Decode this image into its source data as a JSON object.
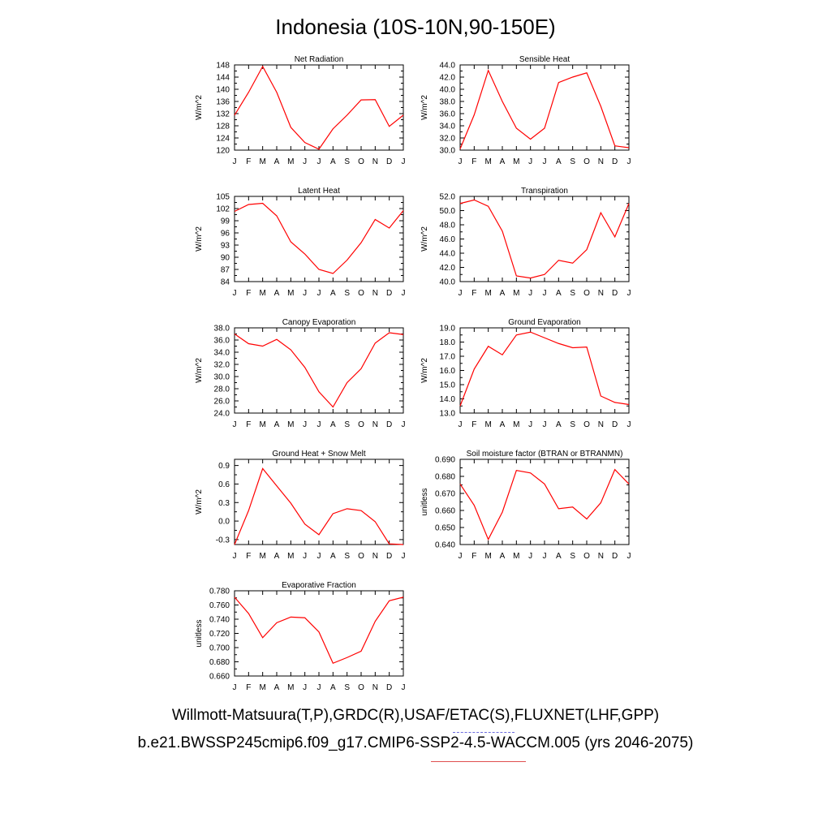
{
  "title": "Indonesia (10S-10N,90-150E)",
  "footer": {
    "observations": "Willmott-Matsuura(T,P),GRDC(R),USAF/ETAC(S),FLUXNET(LHF,GPP)",
    "case": "b.e21.BWSSP245cmip6.f09_g17.CMIP6-SSP2-4.5-WACCM.005 (yrs 2046-2075)"
  },
  "colors": {
    "series": "#ff0000",
    "obs_line": "#6b6bdd",
    "case_line": "#e05050"
  },
  "chart_data": [
    {
      "type": "line",
      "title": "Net Radiation",
      "ylabel": "W/m^2",
      "categories": [
        "J",
        "F",
        "M",
        "A",
        "M",
        "J",
        "J",
        "A",
        "S",
        "O",
        "N",
        "D",
        "J"
      ],
      "values": [
        131.5,
        139.0,
        147.5,
        139.0,
        127.5,
        122.5,
        120.3,
        127.0,
        131.5,
        136.5,
        136.6,
        127.8,
        131.5
      ],
      "ylim": [
        120,
        148
      ],
      "yticks": [
        "120",
        "124",
        "128",
        "132",
        "136",
        "140",
        "144",
        "148"
      ]
    },
    {
      "type": "line",
      "title": "Sensible Heat",
      "ylabel": "W/m^2",
      "categories": [
        "J",
        "F",
        "M",
        "A",
        "M",
        "J",
        "J",
        "A",
        "S",
        "O",
        "N",
        "D",
        "J"
      ],
      "values": [
        30.2,
        35.8,
        43.1,
        38.0,
        33.6,
        31.8,
        33.6,
        41.1,
        42.0,
        42.7,
        37.2,
        30.7,
        30.4
      ],
      "ylim": [
        30,
        44
      ],
      "yticks": [
        "30.0",
        "32.0",
        "34.0",
        "36.0",
        "38.0",
        "40.0",
        "42.0",
        "44.0"
      ]
    },
    {
      "type": "line",
      "title": "Latent Heat",
      "ylabel": "W/m^2",
      "categories": [
        "J",
        "F",
        "M",
        "A",
        "M",
        "J",
        "J",
        "A",
        "S",
        "O",
        "N",
        "D",
        "J"
      ],
      "values": [
        101.3,
        103.0,
        103.3,
        100.2,
        93.8,
        90.8,
        87.0,
        86.0,
        89.3,
        93.6,
        99.3,
        97.2,
        101.5
      ],
      "ylim": [
        84,
        105
      ],
      "yticks": [
        "84",
        "87",
        "90",
        "93",
        "96",
        "99",
        "102",
        "105"
      ]
    },
    {
      "type": "line",
      "title": "Transpiration",
      "ylabel": "W/m^2",
      "categories": [
        "J",
        "F",
        "M",
        "A",
        "M",
        "J",
        "J",
        "A",
        "S",
        "O",
        "N",
        "D",
        "J"
      ],
      "values": [
        51.0,
        51.5,
        50.6,
        47.1,
        40.8,
        40.5,
        41.0,
        43.0,
        42.6,
        44.5,
        49.7,
        46.3,
        51.0
      ],
      "ylim": [
        40,
        52
      ],
      "yticks": [
        "40.0",
        "42.0",
        "44.0",
        "46.0",
        "48.0",
        "50.0",
        "52.0"
      ]
    },
    {
      "type": "line",
      "title": "Canopy Evaporation",
      "ylabel": "W/m^2",
      "categories": [
        "J",
        "F",
        "M",
        "A",
        "M",
        "J",
        "J",
        "A",
        "S",
        "O",
        "N",
        "D",
        "J"
      ],
      "values": [
        37.0,
        35.4,
        35.0,
        36.1,
        34.4,
        31.5,
        27.5,
        25.0,
        29.0,
        31.3,
        35.5,
        37.2,
        36.9
      ],
      "ylim": [
        24,
        38
      ],
      "yticks": [
        "24.0",
        "26.0",
        "28.0",
        "30.0",
        "32.0",
        "34.0",
        "36.0",
        "38.0"
      ]
    },
    {
      "type": "line",
      "title": "Ground Evaporation",
      "ylabel": "W/m^2",
      "categories": [
        "J",
        "F",
        "M",
        "A",
        "M",
        "J",
        "J",
        "A",
        "S",
        "O",
        "N",
        "D",
        "J"
      ],
      "values": [
        13.5,
        16.1,
        17.7,
        17.1,
        18.5,
        18.7,
        18.3,
        17.9,
        17.6,
        17.65,
        14.2,
        13.75,
        13.6
      ],
      "ylim": [
        13,
        19
      ],
      "yticks": [
        "13.0",
        "14.0",
        "15.0",
        "16.0",
        "17.0",
        "18.0",
        "19.0"
      ]
    },
    {
      "type": "line",
      "title": "Ground Heat + Snow Melt",
      "ylabel": "W/m^2",
      "categories": [
        "J",
        "F",
        "M",
        "A",
        "M",
        "J",
        "J",
        "A",
        "S",
        "O",
        "N",
        "D",
        "J"
      ],
      "values": [
        -0.38,
        0.17,
        0.85,
        0.57,
        0.29,
        -0.05,
        -0.22,
        0.12,
        0.2,
        0.17,
        -0.01,
        -0.37,
        -0.38
      ],
      "ylim": [
        -0.38,
        1.0
      ],
      "yticks": [
        {
          "v": -0.3,
          "label": "-0.3"
        },
        {
          "v": 0.0,
          "label": "0.0"
        },
        {
          "v": 0.3,
          "label": "0.3"
        },
        {
          "v": 0.6,
          "label": "0.6"
        },
        {
          "v": 0.9,
          "label": "0.9"
        }
      ]
    },
    {
      "type": "line",
      "title": "Soil moisture factor (BTRAN or BTRANMN)",
      "ylabel": "unitless",
      "categories": [
        "J",
        "F",
        "M",
        "A",
        "M",
        "J",
        "J",
        "A",
        "S",
        "O",
        "N",
        "D",
        "J"
      ],
      "values": [
        0.6755,
        0.663,
        0.643,
        0.659,
        0.6835,
        0.682,
        0.6755,
        0.661,
        0.662,
        0.655,
        0.6645,
        0.684,
        0.6755
      ],
      "ylim": [
        0.64,
        0.69
      ],
      "yticks": [
        "0.640",
        "0.650",
        "0.660",
        "0.670",
        "0.680",
        "0.690"
      ]
    },
    {
      "type": "line",
      "title": "Evaporative Fraction",
      "ylabel": "unitless",
      "categories": [
        "J",
        "F",
        "M",
        "A",
        "M",
        "J",
        "J",
        "A",
        "S",
        "O",
        "N",
        "D",
        "J"
      ],
      "values": [
        0.771,
        0.748,
        0.714,
        0.735,
        0.743,
        0.742,
        0.722,
        0.678,
        0.686,
        0.695,
        0.737,
        0.766,
        0.771
      ],
      "ylim": [
        0.66,
        0.78
      ],
      "yticks": [
        "0.660",
        "0.680",
        "0.700",
        "0.720",
        "0.740",
        "0.760",
        "0.780"
      ]
    }
  ]
}
